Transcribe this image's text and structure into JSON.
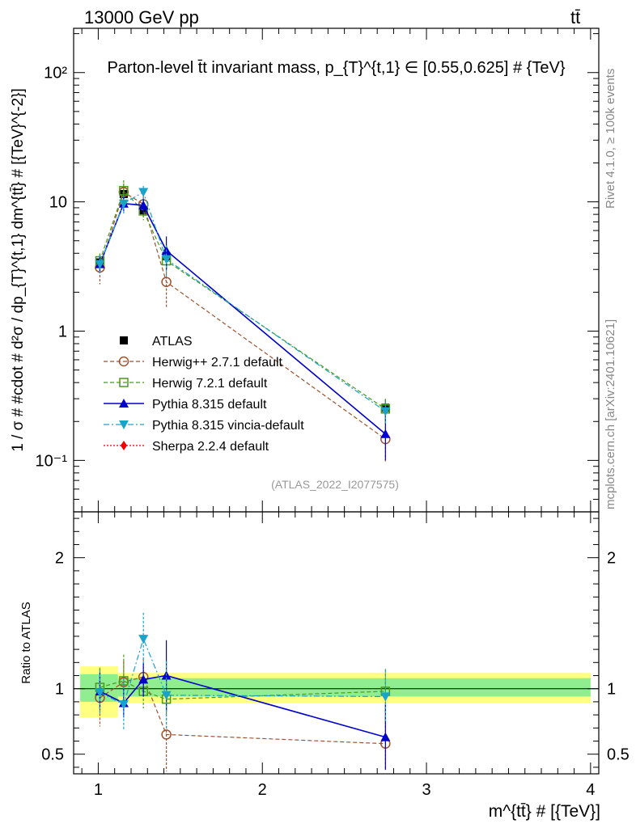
{
  "header": {
    "energy_label": "13000 GeV pp",
    "process_label": "tt̄"
  },
  "side_labels": {
    "rivet": "Rivet 4.1.0, ≥ 100k events",
    "mcplots": "mcplots.cern.ch [arXiv:2401.10621]"
  },
  "chart_data": [
    {
      "type": "scatter",
      "panel": "main",
      "title": "Parton-level t̄t invariant mass, p_{T}^{t,1} ∈ [0.55,0.625] # {TeV}",
      "xlabel": "m^{tt̄} # [{TeV}]",
      "ylabel": "1 / σ # #cdot # d²σ / dp_{T}^{t,1} dm^{tt̄} # [{TeV}^{-2}]",
      "yscale": "log",
      "xlim": [
        0.85,
        4.05
      ],
      "ylim": [
        0.04,
        220
      ],
      "y_ticks": [
        0.1,
        1,
        10,
        100
      ],
      "y_tick_labels": [
        "10⁻¹",
        "1",
        "10",
        "10²"
      ],
      "watermark": "(ATLAS_2022_I2077575)",
      "legend_position": "middle-left",
      "x": [
        1.01,
        1.155,
        1.275,
        1.415,
        2.75
      ],
      "series": [
        {
          "name": "ATLAS",
          "color": "#000000",
          "marker": "square-filled",
          "line": "none",
          "values": [
            3.4,
            11.5,
            8.6,
            3.8,
            0.255
          ],
          "err_low": [
            0.5,
            1.0,
            0.9,
            0.8,
            0.04
          ],
          "err_high": [
            0.5,
            1.0,
            0.9,
            0.8,
            0.04
          ]
        },
        {
          "name": "Herwig++ 2.7.1 default",
          "color": "#a0522d",
          "marker": "circle-open",
          "line": "dashed",
          "values": [
            3.1,
            11.9,
            9.6,
            2.4,
            0.146
          ],
          "err_low": [
            0.8,
            2.0,
            1.5,
            0.9,
            0.05
          ],
          "err_high": [
            0.8,
            2.0,
            1.5,
            0.9,
            0.05
          ]
        },
        {
          "name": "Herwig 7.2.1 default",
          "color": "#4a9a1a",
          "marker": "square-open",
          "line": "dashed",
          "values": [
            3.5,
            12.2,
            8.5,
            3.5,
            0.25
          ],
          "err_low": [
            0.5,
            2.5,
            1.3,
            0.5,
            0.05
          ],
          "err_high": [
            0.5,
            2.5,
            1.3,
            0.5,
            0.05
          ]
        },
        {
          "name": "Pythia 8.315 default",
          "color": "#0000cc",
          "marker": "triangle-up",
          "line": "solid",
          "values": [
            3.3,
            9.7,
            9.4,
            4.2,
            0.16
          ],
          "err_low": [
            0.5,
            1.2,
            1.2,
            1.2,
            0.06
          ],
          "err_high": [
            0.5,
            1.2,
            1.2,
            1.2,
            0.06
          ]
        },
        {
          "name": "Pythia 8.315 vincia-default",
          "color": "#1aa3c8",
          "marker": "triangle-down",
          "line": "dashdot",
          "values": [
            3.3,
            9.7,
            11.9,
            3.6,
            0.24
          ],
          "err_low": [
            0.6,
            1.6,
            1.4,
            1.0,
            0.05
          ],
          "err_high": [
            0.6,
            1.6,
            1.4,
            1.0,
            0.05
          ]
        },
        {
          "name": "Sherpa 2.2.4 default",
          "color": "#ee0000",
          "marker": "diamond",
          "line": "dotted",
          "values": [],
          "err_low": [],
          "err_high": []
        }
      ]
    },
    {
      "type": "scatter",
      "panel": "ratio",
      "ylabel": "Ratio to ATLAS",
      "xlabel": "m^{tt̄} # [{TeV}]",
      "xlim": [
        0.85,
        4.05
      ],
      "ylim": [
        0.35,
        2.35
      ],
      "x_ticks": [
        1,
        2,
        3,
        4
      ],
      "y_ticks": [
        0.5,
        1,
        2
      ],
      "y_tick_labels": [
        "0.5",
        "1",
        "2"
      ],
      "bands": [
        {
          "x": [
            0.89,
            1.12
          ],
          "yellow": [
            0.78,
            1.17
          ],
          "green": [
            0.9,
            1.11
          ]
        },
        {
          "x": [
            1.12,
            4.0
          ],
          "yellow": [
            0.89,
            1.12
          ],
          "green": [
            0.94,
            1.08
          ]
        }
      ],
      "x": [
        1.01,
        1.155,
        1.275,
        1.415,
        2.75
      ],
      "series": [
        {
          "name": "Herwig++ 2.7.1 default",
          "color": "#a0522d",
          "marker": "circle-open",
          "line": "dashed",
          "values": [
            0.93,
            1.05,
            1.09,
            0.65,
            0.58
          ],
          "err": [
            0.22,
            0.16,
            0.14,
            0.28,
            0.2
          ]
        },
        {
          "name": "Herwig 7.2.1 default",
          "color": "#4a9a1a",
          "marker": "square-open",
          "line": "dashed",
          "values": [
            1.01,
            1.06,
            0.98,
            0.92,
            0.98
          ],
          "err": [
            0.15,
            0.2,
            0.13,
            0.12,
            0.17
          ]
        },
        {
          "name": "Pythia 8.315 default",
          "color": "#0000cc",
          "marker": "triangle-up",
          "line": "solid",
          "values": [
            0.98,
            0.89,
            1.07,
            1.1,
            0.63
          ],
          "err": [
            0.14,
            0.11,
            0.13,
            0.27,
            0.25
          ]
        },
        {
          "name": "Pythia 8.315 vincia-default",
          "color": "#1aa3c8",
          "marker": "triangle-down",
          "line": "dashdot",
          "values": [
            0.97,
            0.88,
            1.38,
            0.95,
            0.94
          ],
          "err": [
            0.17,
            0.2,
            0.2,
            0.26,
            0.2
          ]
        }
      ]
    }
  ]
}
